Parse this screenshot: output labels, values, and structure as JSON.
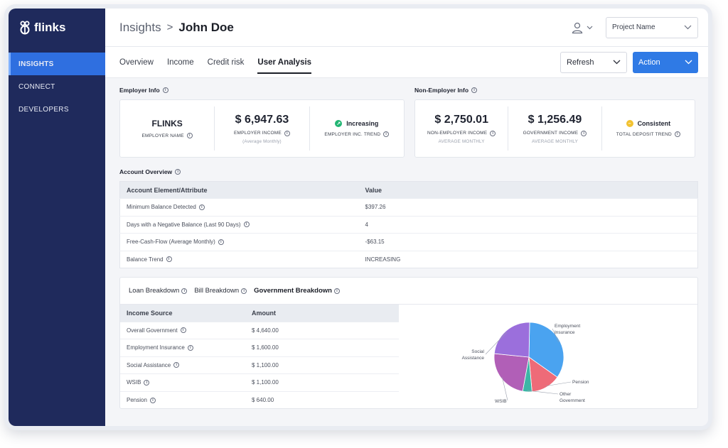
{
  "brand": {
    "name": "flinks"
  },
  "sidebar": {
    "items": [
      {
        "label": "INSIGHTS",
        "active": true
      },
      {
        "label": "CONNECT",
        "active": false
      },
      {
        "label": "DEVELOPERS",
        "active": false
      }
    ]
  },
  "header": {
    "breadcrumb_root": "Insights",
    "breadcrumb_sep": ">",
    "breadcrumb_current": "John Doe",
    "project_select": "Project Name"
  },
  "tabs": [
    {
      "label": "Overview"
    },
    {
      "label": "Income"
    },
    {
      "label": "Credit risk"
    },
    {
      "label": "User Analysis",
      "active": true
    }
  ],
  "toolbar": {
    "refresh_label": "Refresh",
    "action_label": "Action"
  },
  "employer": {
    "title": "Employer Info",
    "name_value": "FLINKS",
    "name_label": "EMPLOYER NAME",
    "income_value": "$ 6,947.63",
    "income_label": "EMPLOYER INCOME",
    "income_sub": "(Average Monthly)",
    "trend_value": "Increasing",
    "trend_label": "EMPLOYER INC. TREND"
  },
  "non_employer": {
    "title": "Non-Employer Info",
    "income_value": "$ 2,750.01",
    "income_label": "NON-EMPLOYER INCOME",
    "income_sub": "AVERAGE MONTHLY",
    "gov_value": "$ 1,256.49",
    "gov_label": "GOVERNMENT INCOME",
    "gov_sub": "AVERAGE MONTHLY",
    "trend_value": "Consistent",
    "trend_label": "TOTAL DEPOSIT TREND"
  },
  "account_overview": {
    "title": "Account Overview",
    "columns": [
      "Account Element/Attribute",
      "Value"
    ],
    "rows": [
      {
        "attr": "Minimum Balance Detected",
        "value": "$397.26"
      },
      {
        "attr": "Days with a Negative Balance (Last 90 Days)",
        "value": "4"
      },
      {
        "attr": "Free-Cash-Flow (Average Monthly)",
        "value": "-$63.15"
      },
      {
        "attr": "Balance Trend",
        "value": "INCREASING"
      }
    ]
  },
  "breakdown": {
    "tabs": [
      {
        "label": "Loan Breakdown"
      },
      {
        "label": "Bill Breakdown"
      },
      {
        "label": "Government Breakdown",
        "active": true
      }
    ],
    "columns": [
      "Income Source",
      "Amount"
    ],
    "rows": [
      {
        "source": "Overall Government",
        "amount": "$ 4,640.00"
      },
      {
        "source": "Employment Insurance",
        "amount": "$ 1,600.00"
      },
      {
        "source": "Social Assistance",
        "amount": "$ 1,100.00"
      },
      {
        "source": "WSIB",
        "amount": "$ 1,100.00"
      },
      {
        "source": "Pension",
        "amount": "$ 640.00"
      }
    ]
  },
  "chart_data": {
    "type": "pie",
    "slices": [
      {
        "label": "Employment Insurance",
        "value": 1600,
        "color": "#4aa3f0"
      },
      {
        "label": "Pension",
        "value": 640,
        "color": "#ee6b78"
      },
      {
        "label": "Other Government",
        "value": 200,
        "color": "#3cb6a6"
      },
      {
        "label": "WSIB",
        "value": 1100,
        "color": "#b15fb7"
      },
      {
        "label": "Social Assistance",
        "value": 1100,
        "color": "#9b6fdc"
      }
    ]
  },
  "colors": {
    "sidebar": "#1f2a5c",
    "accent": "#2f7ae5",
    "increasing": "#22b573",
    "consistent": "#f2c230"
  }
}
